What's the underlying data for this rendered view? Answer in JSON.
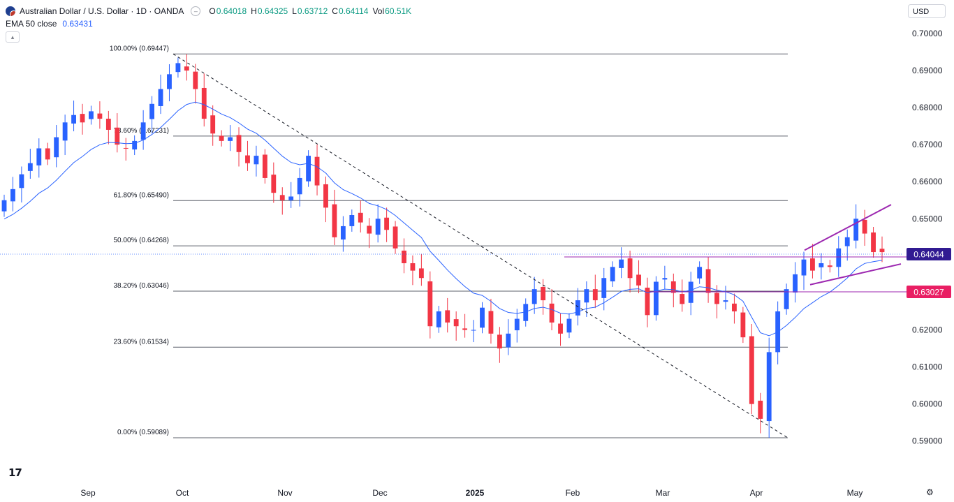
{
  "header": {
    "symbol": "Australian Dollar / U.S. Dollar · 1D · OANDA",
    "o_label": "O",
    "o_value": "0.64018",
    "h_label": "H",
    "h_value": "0.64325",
    "l_label": "L",
    "l_value": "0.63712",
    "c_label": "C",
    "c_value": "0.64114",
    "vol_label": "Vol",
    "vol_value": "60.51K",
    "ema_label": "EMA 50 close",
    "ema_value": "0.63431",
    "currency": "USD",
    "collapse_icon": "chevron-up-icon",
    "settings_icon": "gear-icon",
    "logo_text": "17"
  },
  "colors": {
    "up": "#2962ff",
    "down": "#f23645",
    "ema": "#2962ff",
    "fib": "#5d606b",
    "channel": "#9c27b0",
    "current_price": "#311b92",
    "support_label": "#e91e63",
    "support_line": "#9c27b0"
  },
  "chart_data": {
    "type": "candlestick",
    "x_tick_labels": [
      "Sep",
      "Oct",
      "Nov",
      "Dec",
      "2025",
      "Feb",
      "Mar",
      "Apr",
      "May"
    ],
    "y_ticks": [
      0.59,
      0.6,
      0.61,
      0.62,
      0.63,
      0.64,
      0.65,
      0.66,
      0.67,
      0.68,
      0.69,
      0.7
    ],
    "y_tick_labels": [
      "0.59000",
      "0.60000",
      "0.61000",
      "0.62000",
      "0.63000",
      "0.64000",
      "0.65000",
      "0.66000",
      "0.67000",
      "0.68000",
      "0.69000",
      "0.70000"
    ],
    "ylim": [
      0.5875,
      0.7015
    ],
    "fib_levels": [
      {
        "label": "100.00% (0.69447)",
        "price": 0.69447
      },
      {
        "label": "78.60% (0.67231)",
        "price": 0.67231
      },
      {
        "label": "61.80% (0.65490)",
        "price": 0.6549
      },
      {
        "label": "50.00% (0.64268)",
        "price": 0.64268
      },
      {
        "label": "38.20% (0.63046)",
        "price": 0.63046
      },
      {
        "label": "23.60% (0.61534)",
        "price": 0.61534
      },
      {
        "label": "0.00% (0.59089)",
        "price": 0.59089
      }
    ],
    "price_labels": [
      {
        "text": "0.64044",
        "price": 0.64044,
        "role": "current"
      },
      {
        "text": "0.63027",
        "price": 0.63027,
        "role": "support"
      }
    ],
    "candles": [
      0.655,
      0.658,
      0.662,
      0.665,
      0.669,
      0.666,
      0.672,
      0.676,
      0.678,
      0.676,
      0.679,
      0.677,
      0.674,
      0.67,
      0.669,
      0.671,
      0.676,
      0.681,
      0.685,
      0.689,
      0.692,
      0.69,
      0.685,
      0.677,
      0.673,
      0.671,
      0.672,
      0.668,
      0.665,
      0.667,
      0.661,
      0.657,
      0.655,
      0.656,
      0.661,
      0.667,
      0.659,
      0.653,
      0.645,
      0.648,
      0.651,
      0.649,
      0.646,
      0.65,
      0.647,
      0.642,
      0.638,
      0.636,
      0.634,
      0.621,
      0.625,
      0.622,
      0.621,
      0.62,
      0.62,
      0.626,
      0.619,
      0.615,
      0.619,
      0.623,
      0.627,
      0.631,
      0.628,
      0.622,
      0.619,
      0.623,
      0.628,
      0.631,
      0.628,
      0.634,
      0.637,
      0.639,
      0.634,
      0.632,
      0.624,
      0.633,
      0.634,
      0.63,
      0.627,
      0.633,
      0.637,
      0.63,
      0.627,
      0.628,
      0.625,
      0.618,
      0.6,
      0.596,
      0.614,
      0.625,
      0.631,
      0.635,
      0.639,
      0.636,
      0.638,
      0.637,
      0.642,
      0.645,
      0.65,
      0.646,
      0.641,
      0.641
    ]
  }
}
